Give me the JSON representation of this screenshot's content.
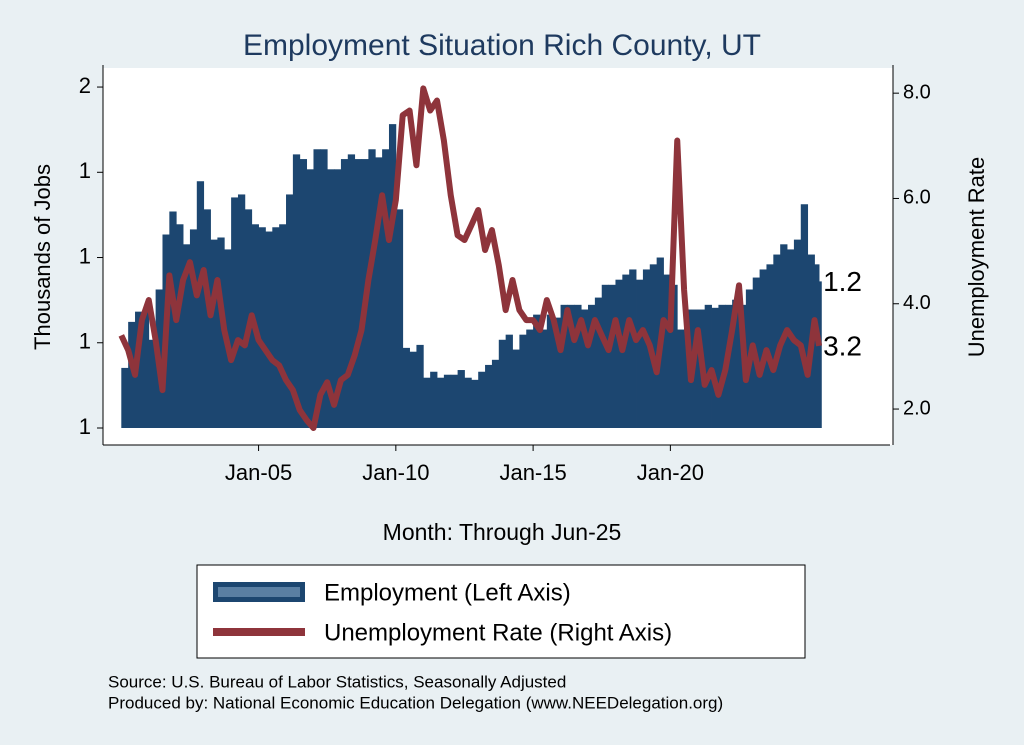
{
  "chart_data": {
    "type": "bar-line",
    "title": "Employment Situation Rich  County, UT",
    "x_label": "Month: Through Jun-25",
    "y_label": "Thousands of Jobs",
    "y2_label": "Unemployment Rate",
    "source": "Source: U.S. Bureau of Labor Statistics, Seasonally Adjusted",
    "producer": "Produced by: National Economic Education Delegation (www.NEEDelegation.org)",
    "x": [
      "2000-01",
      "2000-04",
      "2000-07",
      "2000-10",
      "2001-01",
      "2001-04",
      "2001-07",
      "2001-10",
      "2002-01",
      "2002-04",
      "2002-07",
      "2002-10",
      "2003-01",
      "2003-04",
      "2003-07",
      "2003-10",
      "2004-01",
      "2004-04",
      "2004-07",
      "2004-10",
      "2005-01",
      "2005-04",
      "2005-07",
      "2005-10",
      "2006-01",
      "2006-04",
      "2006-07",
      "2006-10",
      "2007-01",
      "2007-04",
      "2007-07",
      "2007-10",
      "2008-01",
      "2008-04",
      "2008-07",
      "2008-10",
      "2009-01",
      "2009-04",
      "2009-07",
      "2009-10",
      "2010-01",
      "2010-04",
      "2010-07",
      "2010-10",
      "2011-01",
      "2011-04",
      "2011-07",
      "2011-10",
      "2012-01",
      "2012-04",
      "2012-07",
      "2012-10",
      "2013-01",
      "2013-04",
      "2013-07",
      "2013-10",
      "2014-01",
      "2014-04",
      "2014-07",
      "2014-10",
      "2015-01",
      "2015-04",
      "2015-07",
      "2015-10",
      "2016-01",
      "2016-04",
      "2016-07",
      "2016-10",
      "2017-01",
      "2017-04",
      "2017-07",
      "2017-10",
      "2018-01",
      "2018-04",
      "2018-07",
      "2018-10",
      "2019-01",
      "2019-04",
      "2019-07",
      "2019-10",
      "2020-01",
      "2020-04",
      "2020-07",
      "2020-10",
      "2021-01",
      "2021-04",
      "2021-07",
      "2021-10",
      "2022-01",
      "2022-04",
      "2022-07",
      "2022-10",
      "2023-01",
      "2023-04",
      "2023-07",
      "2023-10",
      "2024-01",
      "2024-04",
      "2024-07",
      "2024-10",
      "2025-01",
      "2025-04",
      "2025-06"
    ],
    "xlim": [
      "1999-05",
      "2028-01"
    ],
    "xticks": [
      {
        "value": "2005-01",
        "label": "Jan-05"
      },
      {
        "value": "2010-01",
        "label": "Jan-10"
      },
      {
        "value": "2015-01",
        "label": "Jan-15"
      },
      {
        "value": "2020-01",
        "label": "Jan-20"
      }
    ],
    "ylim": [
      0.9,
      1.74
    ],
    "yticks": [
      {
        "value": 0.9,
        "label": "1"
      },
      {
        "value": 1.1,
        "label": "1"
      },
      {
        "value": 1.3,
        "label": "1"
      },
      {
        "value": 1.5,
        "label": "1"
      },
      {
        "value": 1.7,
        "label": "2"
      }
    ],
    "y2lim": [
      1.64,
      8.44
    ],
    "y2ticks": [
      {
        "value": 2,
        "label": "2.0"
      },
      {
        "value": 4,
        "label": "4.0"
      },
      {
        "value": 6,
        "label": "6.0"
      },
      {
        "value": 8,
        "label": "8.0"
      }
    ],
    "series": [
      {
        "name": "Employment (Left Axis)",
        "type": "bar",
        "color": "#1c4670",
        "end_label": "1.2",
        "values": [
          1.041,
          1.149,
          1.173,
          1.173,
          1.107,
          1.225,
          1.354,
          1.408,
          1.378,
          1.331,
          1.366,
          1.479,
          1.413,
          1.342,
          1.347,
          1.319,
          1.441,
          1.448,
          1.413,
          1.378,
          1.371,
          1.361,
          1.371,
          1.378,
          1.448,
          1.542,
          1.531,
          1.507,
          1.554,
          1.554,
          1.507,
          1.507,
          1.531,
          1.542,
          1.531,
          1.531,
          1.554,
          1.535,
          1.554,
          1.613,
          1.413,
          1.088,
          1.079,
          1.095,
          1.018,
          1.032,
          1.018,
          1.025,
          1.025,
          1.036,
          1.018,
          1.013,
          1.032,
          1.048,
          1.06,
          1.107,
          1.119,
          1.084,
          1.119,
          1.131,
          1.166,
          1.131,
          1.166,
          1.159,
          1.189,
          1.189,
          1.189,
          1.178,
          1.189,
          1.206,
          1.236,
          1.236,
          1.248,
          1.26,
          1.272,
          1.248,
          1.272,
          1.284,
          1.3,
          1.26,
          1.236,
          1.131,
          1.178,
          1.178,
          1.178,
          1.189,
          1.182,
          1.189,
          1.189,
          1.201,
          1.189,
          1.225,
          1.253,
          1.272,
          1.284,
          1.307,
          1.331,
          1.319,
          1.342,
          1.425,
          1.307,
          1.284,
          1.244
        ]
      },
      {
        "name": "Unemployment Rate (Right Axis)",
        "type": "line",
        "axis": "y2",
        "color": "#8e343b",
        "end_label": "3.2",
        "values": [
          3.4,
          3.12,
          2.65,
          3.69,
          4.07,
          3.31,
          2.36,
          4.54,
          3.69,
          4.45,
          4.79,
          4.16,
          4.64,
          3.78,
          4.45,
          3.5,
          2.93,
          3.31,
          3.21,
          3.78,
          3.31,
          3.12,
          2.93,
          2.83,
          2.55,
          2.36,
          1.98,
          1.79,
          1.64,
          2.27,
          2.51,
          2.08,
          2.55,
          2.65,
          3.02,
          3.5,
          4.45,
          5.21,
          6.06,
          5.21,
          5.97,
          7.58,
          7.67,
          6.63,
          8.09,
          7.67,
          7.86,
          7.1,
          6.06,
          5.3,
          5.21,
          5.49,
          5.78,
          5.02,
          5.4,
          4.73,
          3.88,
          4.45,
          3.88,
          3.69,
          3.69,
          3.5,
          4.07,
          3.69,
          3.12,
          3.88,
          3.31,
          3.69,
          3.21,
          3.69,
          3.4,
          3.12,
          3.69,
          3.12,
          3.69,
          3.31,
          3.5,
          3.21,
          2.7,
          3.69,
          3.5,
          7.1,
          4.26,
          2.55,
          3.5,
          2.46,
          2.74,
          2.27,
          2.74,
          3.5,
          4.35,
          2.55,
          3.21,
          2.65,
          3.12,
          2.74,
          3.21,
          3.5,
          3.31,
          3.21,
          2.65,
          3.69,
          3.2
        ]
      }
    ]
  }
}
